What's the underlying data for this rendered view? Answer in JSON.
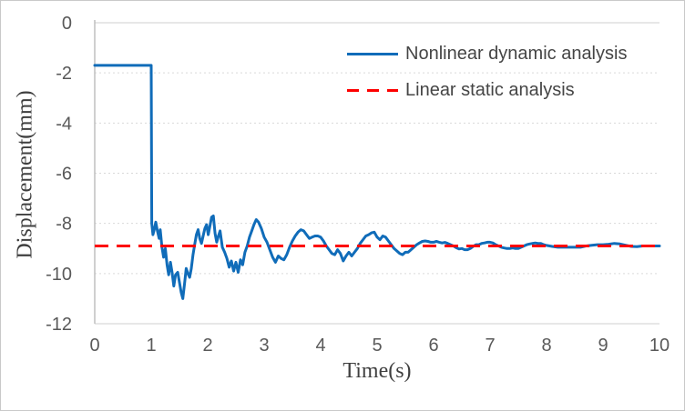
{
  "frame": {
    "background": "#ffffff",
    "border_color": "#c9c9c9"
  },
  "chart_data": {
    "type": "line",
    "title": "",
    "xlabel": "Time(s)",
    "ylabel": "Displacement(mm)",
    "xlim": [
      0,
      10
    ],
    "ylim": [
      -12,
      0
    ],
    "xticks": [
      0,
      1,
      2,
      3,
      4,
      5,
      6,
      7,
      8,
      9,
      10
    ],
    "yticks": [
      0,
      -2,
      -4,
      -6,
      -8,
      -10,
      -12
    ],
    "grid": "horizontal-only",
    "gridline_color": "#d9d9d9",
    "plot_border_color": "#cfcfcf",
    "axis_line_color": "#bfbfbf",
    "tick_label_color": "#595959",
    "axis_title_color": "#3f3f3f",
    "legend_position": "top-right-inside",
    "series": [
      {
        "name": "Nonlinear dynamic analysis",
        "color": "#106cb9",
        "line_style": "solid",
        "line_width": 3,
        "points": [
          [
            0,
            -1.7
          ],
          [
            0.5,
            -1.7
          ],
          [
            0.99,
            -1.7
          ],
          [
            1.0,
            -1.7
          ],
          [
            1.01,
            -8.0
          ],
          [
            1.03,
            -8.45
          ],
          [
            1.06,
            -8.2
          ],
          [
            1.08,
            -7.95
          ],
          [
            1.11,
            -8.3
          ],
          [
            1.14,
            -8.6
          ],
          [
            1.16,
            -8.25
          ],
          [
            1.19,
            -8.95
          ],
          [
            1.22,
            -9.35
          ],
          [
            1.25,
            -9.0
          ],
          [
            1.28,
            -9.65
          ],
          [
            1.31,
            -10.05
          ],
          [
            1.34,
            -9.55
          ],
          [
            1.37,
            -9.95
          ],
          [
            1.4,
            -10.5
          ],
          [
            1.43,
            -10.05
          ],
          [
            1.47,
            -9.95
          ],
          [
            1.5,
            -10.35
          ],
          [
            1.53,
            -10.75
          ],
          [
            1.56,
            -11.0
          ],
          [
            1.59,
            -10.4
          ],
          [
            1.62,
            -9.8
          ],
          [
            1.65,
            -10.0
          ],
          [
            1.68,
            -10.15
          ],
          [
            1.71,
            -9.8
          ],
          [
            1.74,
            -9.25
          ],
          [
            1.77,
            -8.85
          ],
          [
            1.8,
            -8.45
          ],
          [
            1.83,
            -8.25
          ],
          [
            1.86,
            -8.6
          ],
          [
            1.89,
            -8.8
          ],
          [
            1.92,
            -8.5
          ],
          [
            1.95,
            -8.2
          ],
          [
            1.98,
            -8.05
          ],
          [
            2.01,
            -8.45
          ],
          [
            2.04,
            -8.1
          ],
          [
            2.07,
            -7.75
          ],
          [
            2.1,
            -7.7
          ],
          [
            2.13,
            -8.4
          ],
          [
            2.16,
            -8.75
          ],
          [
            2.19,
            -8.5
          ],
          [
            2.22,
            -8.3
          ],
          [
            2.26,
            -8.95
          ],
          [
            2.3,
            -9.15
          ],
          [
            2.34,
            -9.4
          ],
          [
            2.38,
            -9.75
          ],
          [
            2.42,
            -9.5
          ],
          [
            2.46,
            -9.9
          ],
          [
            2.5,
            -9.55
          ],
          [
            2.54,
            -9.95
          ],
          [
            2.58,
            -9.45
          ],
          [
            2.62,
            -9.65
          ],
          [
            2.66,
            -9.15
          ],
          [
            2.7,
            -8.9
          ],
          [
            2.74,
            -8.55
          ],
          [
            2.78,
            -8.3
          ],
          [
            2.82,
            -8.05
          ],
          [
            2.86,
            -7.85
          ],
          [
            2.9,
            -7.95
          ],
          [
            2.95,
            -8.2
          ],
          [
            3.0,
            -8.55
          ],
          [
            3.05,
            -8.75
          ],
          [
            3.1,
            -9.05
          ],
          [
            3.15,
            -9.35
          ],
          [
            3.2,
            -9.55
          ],
          [
            3.25,
            -9.3
          ],
          [
            3.3,
            -9.4
          ],
          [
            3.35,
            -9.45
          ],
          [
            3.4,
            -9.25
          ],
          [
            3.45,
            -8.95
          ],
          [
            3.5,
            -8.7
          ],
          [
            3.55,
            -8.5
          ],
          [
            3.6,
            -8.35
          ],
          [
            3.65,
            -8.25
          ],
          [
            3.7,
            -8.3
          ],
          [
            3.75,
            -8.45
          ],
          [
            3.8,
            -8.6
          ],
          [
            3.85,
            -8.55
          ],
          [
            3.9,
            -8.5
          ],
          [
            3.95,
            -8.5
          ],
          [
            4.0,
            -8.55
          ],
          [
            4.05,
            -8.7
          ],
          [
            4.1,
            -8.9
          ],
          [
            4.15,
            -9.05
          ],
          [
            4.2,
            -9.2
          ],
          [
            4.25,
            -9.25
          ],
          [
            4.3,
            -9.05
          ],
          [
            4.35,
            -9.2
          ],
          [
            4.4,
            -9.5
          ],
          [
            4.45,
            -9.3
          ],
          [
            4.5,
            -9.15
          ],
          [
            4.55,
            -9.3
          ],
          [
            4.6,
            -9.15
          ],
          [
            4.65,
            -9.0
          ],
          [
            4.7,
            -8.8
          ],
          [
            4.75,
            -8.65
          ],
          [
            4.8,
            -8.5
          ],
          [
            4.85,
            -8.45
          ],
          [
            4.9,
            -8.38
          ],
          [
            4.95,
            -8.35
          ],
          [
            5.0,
            -8.55
          ],
          [
            5.05,
            -8.65
          ],
          [
            5.1,
            -8.5
          ],
          [
            5.15,
            -8.55
          ],
          [
            5.2,
            -8.7
          ],
          [
            5.25,
            -8.85
          ],
          [
            5.3,
            -9.0
          ],
          [
            5.35,
            -9.1
          ],
          [
            5.4,
            -9.2
          ],
          [
            5.45,
            -9.25
          ],
          [
            5.5,
            -9.15
          ],
          [
            5.55,
            -9.15
          ],
          [
            5.6,
            -9.05
          ],
          [
            5.65,
            -8.95
          ],
          [
            5.7,
            -8.85
          ],
          [
            5.75,
            -8.78
          ],
          [
            5.8,
            -8.72
          ],
          [
            5.85,
            -8.7
          ],
          [
            5.9,
            -8.72
          ],
          [
            5.95,
            -8.75
          ],
          [
            6.0,
            -8.75
          ],
          [
            6.05,
            -8.72
          ],
          [
            6.1,
            -8.75
          ],
          [
            6.15,
            -8.78
          ],
          [
            6.2,
            -8.76
          ],
          [
            6.25,
            -8.8
          ],
          [
            6.3,
            -8.85
          ],
          [
            6.35,
            -8.9
          ],
          [
            6.4,
            -8.97
          ],
          [
            6.45,
            -9.02
          ],
          [
            6.5,
            -9.0
          ],
          [
            6.55,
            -9.05
          ],
          [
            6.6,
            -9.05
          ],
          [
            6.65,
            -9.0
          ],
          [
            6.7,
            -8.92
          ],
          [
            6.75,
            -8.85
          ],
          [
            6.8,
            -8.85
          ],
          [
            6.85,
            -8.8
          ],
          [
            6.9,
            -8.78
          ],
          [
            6.95,
            -8.75
          ],
          [
            7.0,
            -8.75
          ],
          [
            7.05,
            -8.78
          ],
          [
            7.1,
            -8.85
          ],
          [
            7.15,
            -8.9
          ],
          [
            7.2,
            -8.95
          ],
          [
            7.25,
            -8.98
          ],
          [
            7.3,
            -9.0
          ],
          [
            7.35,
            -9.0
          ],
          [
            7.4,
            -8.98
          ],
          [
            7.45,
            -9.0
          ],
          [
            7.5,
            -9.0
          ],
          [
            7.55,
            -8.95
          ],
          [
            7.6,
            -8.9
          ],
          [
            7.65,
            -8.85
          ],
          [
            7.7,
            -8.82
          ],
          [
            7.75,
            -8.8
          ],
          [
            7.8,
            -8.78
          ],
          [
            7.85,
            -8.8
          ],
          [
            7.9,
            -8.8
          ],
          [
            7.95,
            -8.85
          ],
          [
            8.0,
            -8.88
          ],
          [
            8.1,
            -8.92
          ],
          [
            8.2,
            -8.95
          ],
          [
            8.3,
            -8.95
          ],
          [
            8.4,
            -8.95
          ],
          [
            8.5,
            -8.95
          ],
          [
            8.6,
            -8.95
          ],
          [
            8.7,
            -8.9
          ],
          [
            8.8,
            -8.87
          ],
          [
            8.9,
            -8.85
          ],
          [
            9.0,
            -8.85
          ],
          [
            9.1,
            -8.83
          ],
          [
            9.2,
            -8.8
          ],
          [
            9.3,
            -8.82
          ],
          [
            9.4,
            -8.87
          ],
          [
            9.5,
            -8.92
          ],
          [
            9.6,
            -8.93
          ],
          [
            9.7,
            -8.9
          ],
          [
            9.8,
            -8.9
          ],
          [
            9.9,
            -8.9
          ],
          [
            10.0,
            -8.9
          ]
        ]
      },
      {
        "name": "Linear static analysis",
        "color": "#fd0000",
        "line_style": "dashed",
        "line_width": 3,
        "constant_value": -8.9,
        "x_range": [
          0,
          10
        ]
      }
    ]
  }
}
